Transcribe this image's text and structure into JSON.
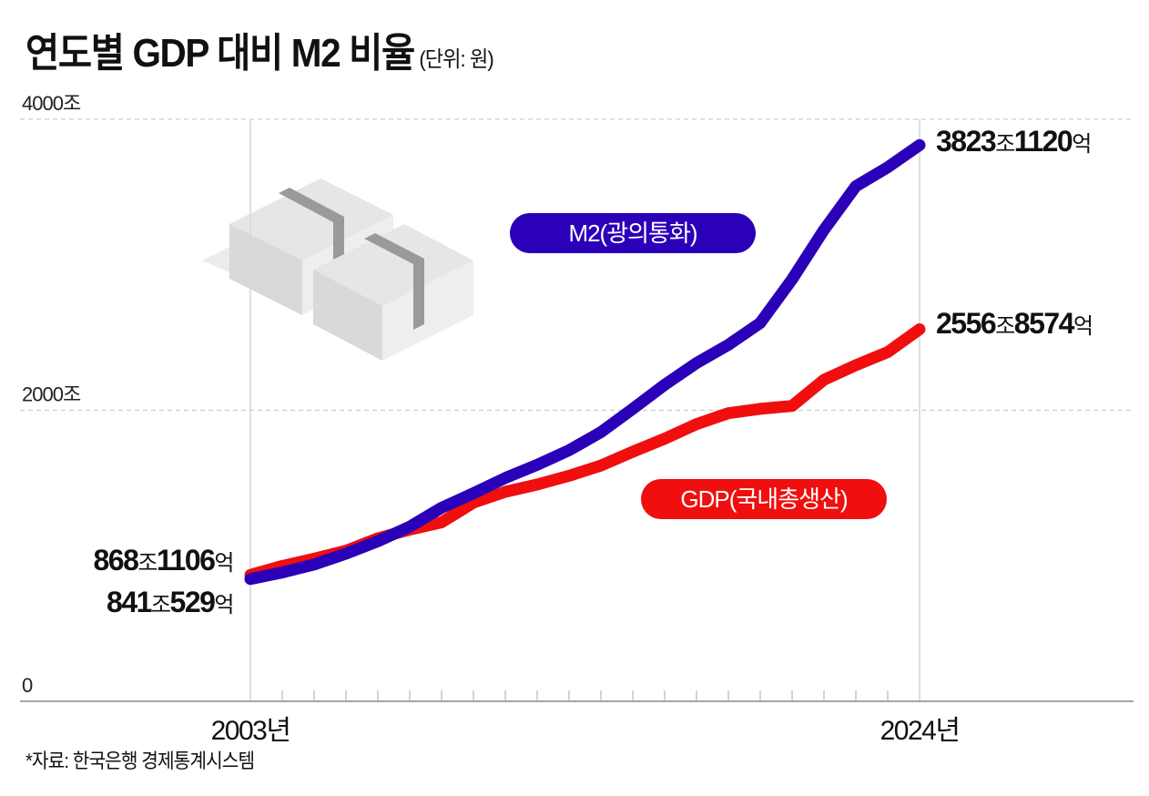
{
  "title": "연도별 GDP 대비 M2 비율",
  "unit_note": "(단위: 원)",
  "source": "*자료: 한국은행 경제통계시스템",
  "colors": {
    "m2": "#2a00b8",
    "gdp": "#f00e0e",
    "grid": "#cccccc",
    "axis": "#888888"
  },
  "chart_data": {
    "type": "line",
    "title": "연도별 GDP 대비 M2 비율",
    "subtitle": "(단위: 원)",
    "xlabel": "",
    "ylabel": "",
    "x": [
      2003,
      2004,
      2005,
      2006,
      2007,
      2008,
      2009,
      2010,
      2011,
      2012,
      2013,
      2014,
      2015,
      2016,
      2017,
      2018,
      2019,
      2020,
      2021,
      2022,
      2023,
      2024
    ],
    "x_tick_labels": [
      {
        "year": 2003,
        "label": "2003년"
      },
      {
        "year": 2024,
        "label": "2024년"
      }
    ],
    "y_ticks": [
      {
        "value": 0,
        "label": "0"
      },
      {
        "value": 2000,
        "label": "2000조"
      },
      {
        "value": 4000,
        "label": "4000조"
      }
    ],
    "ylim": [
      0,
      4000
    ],
    "xlim": [
      1996,
      2030
    ],
    "grid": true,
    "series": [
      {
        "name": "M2(광의통화)",
        "key": "m2",
        "values": [
          841,
          885,
          940,
          1015,
          1100,
          1200,
          1330,
          1430,
          1535,
          1625,
          1725,
          1850,
          2010,
          2175,
          2325,
          2450,
          2600,
          2900,
          3240,
          3540,
          3670,
          3823
        ],
        "start_label": {
          "num1": "841",
          "u1": "조",
          "num2": "529",
          "u2": "억"
        },
        "end_label": {
          "num1": "3823",
          "u1": "조",
          "num2": "1120",
          "u2": "억"
        }
      },
      {
        "name": "GDP(국내총생산)",
        "key": "gdp",
        "values": [
          868,
          930,
          980,
          1035,
          1120,
          1180,
          1230,
          1365,
          1440,
          1490,
          1550,
          1620,
          1715,
          1805,
          1905,
          1980,
          2010,
          2030,
          2210,
          2310,
          2400,
          2557
        ],
        "start_label": {
          "num1": "868",
          "u1": "조",
          "num2": "1106",
          "u2": "억"
        },
        "end_label": {
          "num1": "2556",
          "u1": "조",
          "num2": "8574",
          "u2": "억"
        }
      }
    ],
    "legend": "inline"
  }
}
